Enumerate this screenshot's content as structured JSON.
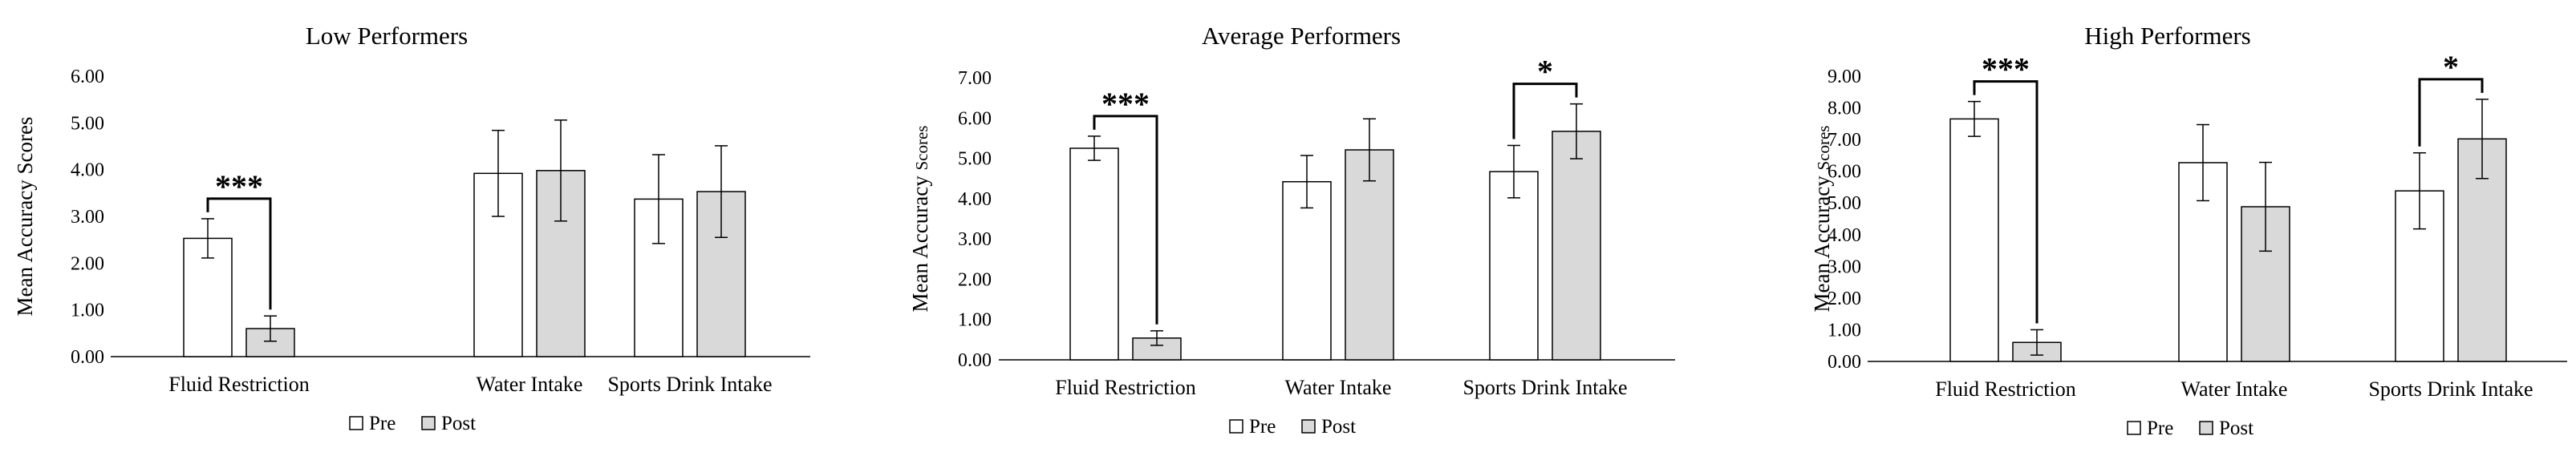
{
  "chart_data": [
    {
      "type": "bar",
      "title": "Low Performers",
      "ylabel_main": "Mean Accuracy Scores",
      "ylabel_suffix": "",
      "ylim": [
        0,
        6
      ],
      "yticks": [
        "0.00",
        "1.00",
        "2.00",
        "3.00",
        "4.00",
        "5.00",
        "6.00"
      ],
      "categories": [
        "Fluid Restriction",
        "Water Intake",
        "Sports Drink Intake"
      ],
      "series": [
        {
          "name": "Pre",
          "color": "#ffffff",
          "values": [
            2.53,
            3.92,
            3.37
          ],
          "errors": [
            0.42,
            0.92,
            0.95
          ]
        },
        {
          "name": "Post",
          "color": "#d9d9d9",
          "values": [
            0.6,
            3.98,
            3.53
          ],
          "errors": [
            0.27,
            1.08,
            0.98
          ]
        }
      ],
      "significance": [
        {
          "category": 0,
          "label": "***"
        }
      ]
    },
    {
      "type": "bar",
      "title": "Average Performers",
      "ylabel_main": "Mean Accuracy ",
      "ylabel_suffix": "Scores",
      "ylim": [
        0,
        7
      ],
      "yticks": [
        "0.00",
        "1.00",
        "2.00",
        "3.00",
        "4.00",
        "5.00",
        "6.00",
        "7.00"
      ],
      "categories": [
        "Fluid Restriction",
        "Water Intake",
        "Sports Drink Intake"
      ],
      "series": [
        {
          "name": "Pre",
          "color": "#ffffff",
          "values": [
            5.25,
            4.42,
            4.67
          ],
          "errors": [
            0.3,
            0.65,
            0.65
          ]
        },
        {
          "name": "Post",
          "color": "#d9d9d9",
          "values": [
            0.54,
            5.21,
            5.67
          ],
          "errors": [
            0.18,
            0.77,
            0.68
          ]
        }
      ],
      "significance": [
        {
          "category": 0,
          "label": "***"
        },
        {
          "category": 2,
          "label": "*"
        }
      ]
    },
    {
      "type": "bar",
      "title": "High Performers",
      "ylabel_main": "Mean Accuracy ",
      "ylabel_suffix": "Scores",
      "ylim": [
        0,
        9
      ],
      "yticks": [
        "0.00",
        "1.00",
        "2.00",
        "3.00",
        "4.00",
        "5.00",
        "6.00",
        "7.00",
        "8.00",
        "9.00"
      ],
      "categories": [
        "Fluid Restriction",
        "Water Intake",
        "Sports Drink Intake"
      ],
      "series": [
        {
          "name": "Pre",
          "color": "#ffffff",
          "values": [
            7.65,
            6.27,
            5.38
          ],
          "errors": [
            0.55,
            1.2,
            1.2
          ]
        },
        {
          "name": "Post",
          "color": "#d9d9d9",
          "values": [
            0.6,
            4.88,
            7.02
          ],
          "errors": [
            0.4,
            1.4,
            1.25
          ]
        }
      ],
      "significance": [
        {
          "category": 0,
          "label": "***"
        },
        {
          "category": 2,
          "label": "*"
        }
      ]
    }
  ]
}
